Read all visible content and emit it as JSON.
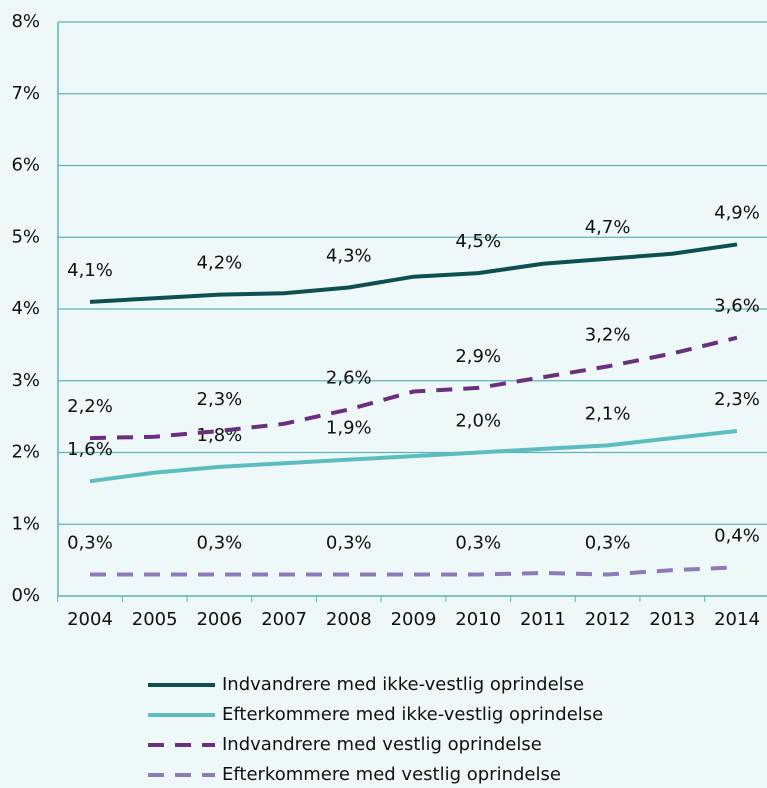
{
  "chart_data": {
    "type": "line",
    "categories": [
      "2004",
      "2005",
      "2006",
      "2007",
      "2008",
      "2009",
      "2010",
      "2011",
      "2012",
      "2013",
      "2014"
    ],
    "ylim": [
      0,
      8
    ],
    "yticks": [
      {
        "value": 0,
        "label": "0%"
      },
      {
        "value": 1,
        "label": "1%"
      },
      {
        "value": 2,
        "label": "2%"
      },
      {
        "value": 3,
        "label": "3%"
      },
      {
        "value": 4,
        "label": "4%"
      },
      {
        "value": 5,
        "label": "5%"
      },
      {
        "value": 6,
        "label": "6%"
      },
      {
        "value": 7,
        "label": "7%"
      },
      {
        "value": 8,
        "label": "8%"
      }
    ],
    "grid": true,
    "legend": "bottom",
    "series": [
      {
        "name": "Indvandrere med ikke-vestlig oprindelse",
        "color": "#0f4f50",
        "dash": false,
        "values": [
          4.1,
          4.15,
          4.2,
          4.22,
          4.3,
          4.45,
          4.5,
          4.63,
          4.7,
          4.77,
          4.9
        ],
        "value_labels": [
          "4,1%",
          null,
          "4,2%",
          null,
          "4,3%",
          null,
          "4,5%",
          null,
          "4,7%",
          null,
          "4,9%"
        ]
      },
      {
        "name": "Efterkommere med ikke-vestlig oprindelse",
        "color": "#5dbcbf",
        "dash": false,
        "values": [
          1.6,
          1.72,
          1.8,
          1.85,
          1.9,
          1.95,
          2.0,
          2.05,
          2.1,
          2.2,
          2.3
        ],
        "value_labels": [
          "1,6%",
          null,
          "1,8%",
          null,
          "1,9%",
          null,
          "2,0%",
          null,
          "2,1%",
          null,
          "2,3%"
        ]
      },
      {
        "name": "Indvandrere med vestlig oprindelse",
        "color": "#6a2f7e",
        "dash": true,
        "values": [
          2.2,
          2.22,
          2.3,
          2.4,
          2.6,
          2.85,
          2.9,
          3.05,
          3.2,
          3.38,
          3.6
        ],
        "value_labels": [
          "2,2%",
          null,
          "2,3%",
          null,
          "2,6%",
          null,
          "2,9%",
          null,
          "3,2%",
          null,
          "3,6%"
        ]
      },
      {
        "name": "Efterkommere med vestlig oprindelse",
        "color": "#8b7cb8",
        "dash": true,
        "values": [
          0.3,
          0.3,
          0.3,
          0.3,
          0.3,
          0.3,
          0.3,
          0.32,
          0.3,
          0.36,
          0.4
        ],
        "value_labels": [
          "0,3%",
          null,
          "0,3%",
          null,
          "0,3%",
          null,
          "0,3%",
          null,
          "0,3%",
          null,
          "0,4%"
        ]
      }
    ]
  }
}
